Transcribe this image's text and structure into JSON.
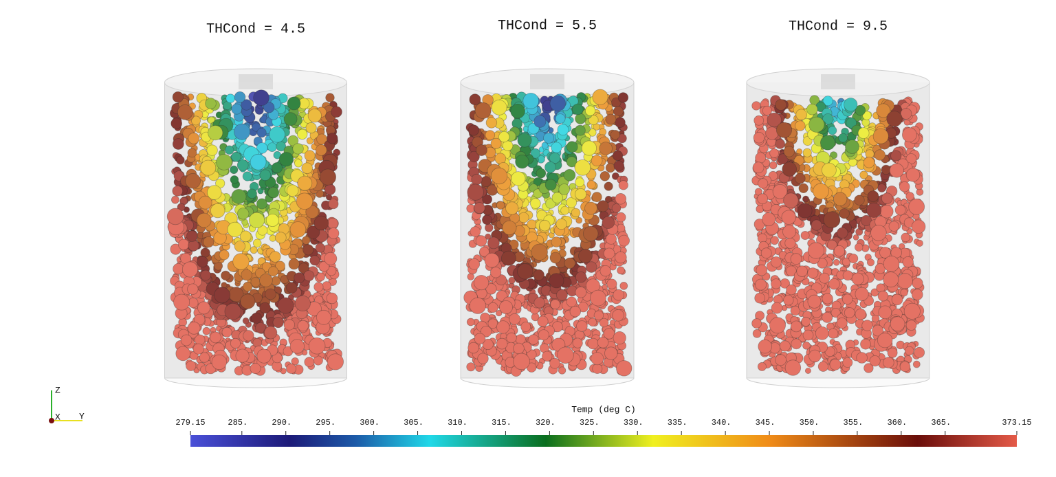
{
  "panels": [
    {
      "title": "THCond = 4.5"
    },
    {
      "title": "THCond = 5.5"
    },
    {
      "title": "THCond = 9.5"
    }
  ],
  "colorbar": {
    "title": "Temp (deg C)",
    "range": [
      279.15,
      373.15
    ],
    "ticks": [
      279.15,
      {
        "value": 285,
        "label": "285."
      },
      {
        "value": 290,
        "label": "290."
      },
      {
        "value": 295,
        "label": "295."
      },
      {
        "value": 300,
        "label": "300."
      },
      {
        "value": 305,
        "label": "305."
      },
      {
        "value": 310,
        "label": "310."
      },
      {
        "value": 315,
        "label": "315."
      },
      {
        "value": 320,
        "label": "320."
      },
      {
        "value": 325,
        "label": "325."
      },
      {
        "value": 330,
        "label": "330."
      },
      {
        "value": 335,
        "label": "335."
      },
      {
        "value": 340,
        "label": "340."
      },
      {
        "value": 345,
        "label": "345."
      },
      {
        "value": 350,
        "label": "350."
      },
      {
        "value": 355,
        "label": "355."
      },
      {
        "value": 360,
        "label": "360."
      },
      {
        "value": 365,
        "label": "365."
      },
      373.15
    ]
  },
  "axes": {
    "z": "Z",
    "x": "X",
    "y": "Y"
  }
}
